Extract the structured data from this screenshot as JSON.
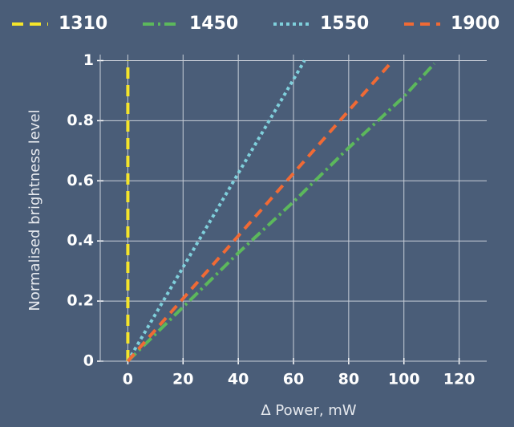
{
  "chart_data": {
    "type": "line",
    "xlabel": "Δ  Power, mW",
    "ylabel": "Normalised brightness level",
    "xlim": [
      -10,
      130
    ],
    "xticks": [
      0,
      20,
      40,
      60,
      80,
      100,
      120
    ],
    "ylim": [
      0,
      1.02
    ],
    "yticks": [
      0,
      0.2,
      0.4,
      0.6,
      0.8,
      1
    ],
    "grid": true,
    "legend": "top",
    "series": [
      {
        "name": "1310",
        "color": "#f5e52a",
        "style": "long-dashed",
        "x": [
          0,
          0
        ],
        "values": [
          0,
          1
        ]
      },
      {
        "name": "1450",
        "color": "#5cb85c",
        "style": "dash-dot",
        "x": [
          0,
          20,
          40,
          60,
          80,
          100,
          111
        ],
        "values": [
          0,
          0.18,
          0.36,
          0.53,
          0.71,
          0.88,
          0.99
        ]
      },
      {
        "name": "1550",
        "color": "#7fd0dc",
        "style": "dotted",
        "x": [
          0,
          64
        ],
        "values": [
          0,
          1
        ]
      },
      {
        "name": "1900",
        "color": "#f06a35",
        "style": "dashed",
        "x": [
          0,
          96
        ],
        "values": [
          0,
          1
        ]
      }
    ]
  }
}
